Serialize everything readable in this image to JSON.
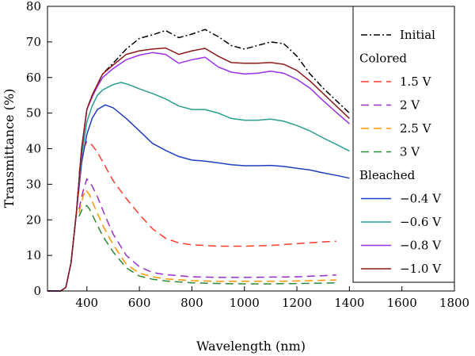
{
  "chart_data": {
    "type": "line",
    "title": "",
    "xlabel": "Wavelength (nm)",
    "ylabel": "Transmittance (%)",
    "xlim": [
      250,
      1800
    ],
    "ylim": [
      0,
      80
    ],
    "xticks": [
      400,
      600,
      800,
      1000,
      1200,
      1400,
      1600,
      1800
    ],
    "yticks": [
      0,
      10,
      20,
      30,
      40,
      50,
      60,
      70,
      80
    ],
    "grid": false,
    "legend_position": "top-right",
    "legend": [
      {
        "kind": "series",
        "series": 0,
        "label": "Initial"
      },
      {
        "kind": "header",
        "label": "Colored"
      },
      {
        "kind": "series",
        "series": 1,
        "label": "1.5 V"
      },
      {
        "kind": "series",
        "series": 2,
        "label": "2 V"
      },
      {
        "kind": "series",
        "series": 3,
        "label": "2.5 V"
      },
      {
        "kind": "series",
        "series": 4,
        "label": "3 V"
      },
      {
        "kind": "header",
        "label": "Bleached"
      },
      {
        "kind": "series",
        "series": 5,
        "label": "−0.4 V"
      },
      {
        "kind": "series",
        "series": 6,
        "label": "−0.6 V"
      },
      {
        "kind": "series",
        "series": 7,
        "label": "−0.8 V"
      },
      {
        "kind": "series",
        "series": 8,
        "label": "−1.0 V"
      }
    ],
    "series": [
      {
        "name": "Initial",
        "color": "#000000",
        "dash": "dashdot",
        "x": [
          250,
          300,
          320,
          340,
          360,
          380,
          400,
          420,
          440,
          460,
          500,
          550,
          600,
          650,
          700,
          750,
          800,
          850,
          900,
          950,
          1000,
          1050,
          1100,
          1150,
          1200,
          1250,
          1300,
          1350,
          1400
        ],
        "y": [
          0,
          0,
          1,
          8,
          22,
          40,
          51,
          55,
          58,
          61,
          64,
          68,
          71,
          72,
          73.2,
          71.2,
          72.2,
          73.5,
          71.5,
          69,
          68,
          69,
          70,
          69.5,
          66,
          61,
          57,
          53.5,
          50
        ]
      },
      {
        "name": "1.5 V",
        "color": "#ff3b30",
        "dash": "dash",
        "x": [
          370,
          385,
          400,
          420,
          440,
          470,
          500,
          550,
          600,
          650,
          700,
          750,
          800,
          900,
          1000,
          1100,
          1200,
          1300,
          1350
        ],
        "y": [
          33,
          39.5,
          42,
          41,
          39,
          35,
          31,
          26,
          21.5,
          17.5,
          14.8,
          13.5,
          13,
          12.6,
          12.6,
          12.8,
          13.3,
          13.8,
          14
        ]
      },
      {
        "name": "2 V",
        "color": "#9b30c8",
        "dash": "dash",
        "x": [
          370,
          385,
          400,
          420,
          440,
          470,
          500,
          550,
          600,
          650,
          700,
          800,
          900,
          1000,
          1100,
          1200,
          1300,
          1350
        ],
        "y": [
          23,
          28,
          31.5,
          29.5,
          26.5,
          21,
          16,
          10,
          6.8,
          5.2,
          4.6,
          4,
          3.8,
          3.8,
          3.9,
          4,
          4.3,
          4.5
        ]
      },
      {
        "name": "2.5 V",
        "color": "#ff9500",
        "dash": "dash",
        "x": [
          370,
          385,
          395,
          410,
          430,
          460,
          500,
          550,
          600,
          650,
          700,
          800,
          900,
          1000,
          1100,
          1200,
          1300,
          1350
        ],
        "y": [
          22,
          26.5,
          28.5,
          27,
          23.5,
          18.5,
          13,
          7.5,
          5,
          4,
          3.4,
          2.9,
          2.7,
          2.7,
          2.7,
          2.8,
          3,
          3.1
        ]
      },
      {
        "name": "3 V",
        "color": "#2a8a3a",
        "dash": "dash",
        "x": [
          370,
          385,
          400,
          410,
          430,
          460,
          500,
          550,
          600,
          650,
          700,
          800,
          900,
          1000,
          1100,
          1200,
          1300,
          1350
        ],
        "y": [
          21,
          23.5,
          24,
          23,
          20,
          15.5,
          11,
          6.5,
          4.2,
          3.3,
          2.8,
          2.3,
          2.1,
          2,
          2,
          2.1,
          2.2,
          2.3
        ]
      },
      {
        "name": "−0.4 V",
        "color": "#1f3fbf",
        "dash": "solid",
        "x": [
          250,
          300,
          320,
          340,
          360,
          380,
          400,
          420,
          440,
          470,
          500,
          550,
          600,
          650,
          700,
          750,
          800,
          850,
          900,
          950,
          1000,
          1050,
          1100,
          1150,
          1200,
          1250,
          1300,
          1350,
          1400
        ],
        "y": [
          0,
          0,
          1,
          8,
          22,
          36,
          44,
          48.5,
          51,
          52.3,
          51.5,
          48.5,
          45,
          41.5,
          39.5,
          37.8,
          36.8,
          36.5,
          36,
          35.5,
          35.2,
          35.2,
          35.3,
          35,
          34.5,
          34,
          33.2,
          32.5,
          31.7
        ]
      },
      {
        "name": "−0.6 V",
        "color": "#2a9d8f",
        "dash": "solid",
        "x": [
          250,
          300,
          320,
          340,
          360,
          380,
          400,
          420,
          440,
          460,
          500,
          530,
          560,
          600,
          650,
          700,
          750,
          800,
          850,
          900,
          950,
          1000,
          1050,
          1100,
          1150,
          1200,
          1250,
          1300,
          1350,
          1400
        ],
        "y": [
          0,
          0,
          1,
          8,
          22,
          38,
          47.5,
          52,
          55,
          56.5,
          58,
          58.6,
          58,
          56.8,
          55.5,
          54,
          52,
          51,
          51,
          50,
          48.5,
          48,
          48,
          48.3,
          47.7,
          46.5,
          45,
          43,
          41.2,
          39.3
        ]
      },
      {
        "name": "−0.8 V",
        "color": "#9b30e8",
        "dash": "solid",
        "x": [
          250,
          300,
          320,
          340,
          360,
          380,
          400,
          420,
          440,
          460,
          500,
          550,
          600,
          650,
          700,
          750,
          800,
          850,
          900,
          950,
          1000,
          1050,
          1100,
          1150,
          1200,
          1250,
          1300,
          1350,
          1400
        ],
        "y": [
          0,
          0,
          1,
          8,
          22,
          40,
          51,
          54.5,
          57.5,
          60,
          62.5,
          65,
          66.3,
          67,
          66.5,
          64,
          65,
          65.7,
          63,
          61.5,
          61,
          61.2,
          61.8,
          61.2,
          59.5,
          57,
          53.5,
          50.2,
          47
        ]
      },
      {
        "name": "−1.0 V",
        "color": "#8b1a1a",
        "dash": "solid",
        "x": [
          250,
          300,
          320,
          340,
          360,
          380,
          400,
          420,
          440,
          460,
          500,
          550,
          600,
          650,
          700,
          750,
          800,
          850,
          900,
          950,
          1000,
          1050,
          1100,
          1150,
          1200,
          1250,
          1300,
          1350,
          1400
        ],
        "y": [
          0,
          0,
          1,
          8,
          22,
          40,
          51,
          55,
          58,
          61,
          63.5,
          66.5,
          67.5,
          68,
          68.3,
          66.5,
          67.5,
          68.2,
          66,
          64.2,
          64,
          64,
          64.2,
          63.7,
          62,
          59,
          55.5,
          52,
          48.5
        ]
      }
    ]
  }
}
